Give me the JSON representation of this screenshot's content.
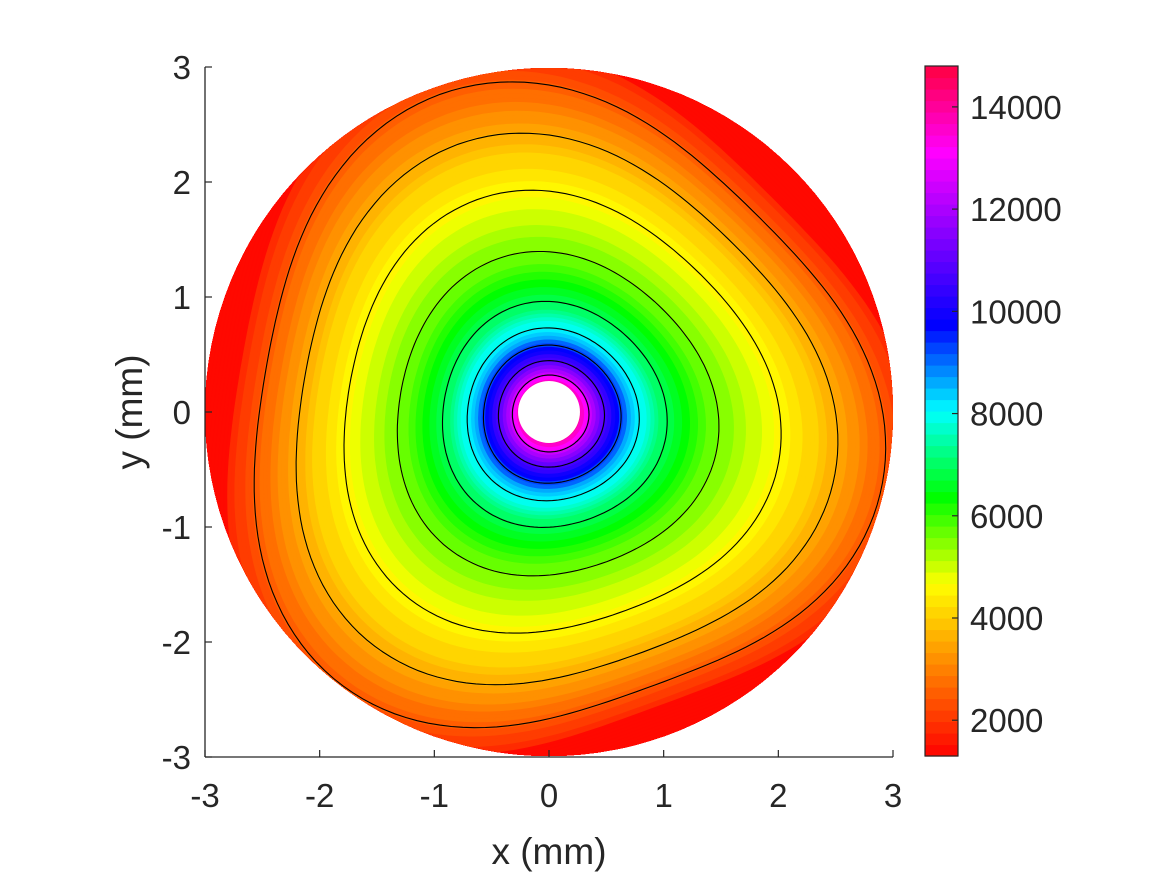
{
  "chart_data": {
    "type": "heatmap",
    "title": "",
    "xlabel": "x (mm)",
    "ylabel": "y (mm)",
    "xlim": [
      -3,
      3
    ],
    "ylim": [
      -3,
      3
    ],
    "xticks": [
      "-3",
      "-2",
      "-1",
      "0",
      "1",
      "2",
      "3"
    ],
    "yticks": [
      "-3",
      "-2",
      "-1",
      "0",
      "1",
      "2",
      "3"
    ],
    "grid": false,
    "domain": {
      "shape": "annulus",
      "outer_radius_mm": 3,
      "inner_radius_mm": 0.27
    },
    "colorbar": {
      "range": [
        1300,
        14800
      ],
      "ticks": [
        "2000",
        "4000",
        "6000",
        "8000",
        "10000",
        "12000",
        "14000"
      ],
      "tick_values": [
        2000,
        4000,
        6000,
        8000,
        10000,
        12000,
        14000
      ],
      "colormap": [
        "#ff0000",
        "#ff8000",
        "#ffff00",
        "#00ff00",
        "#00ffff",
        "#0000ff",
        "#8000ff",
        "#ff00ff",
        "#ff0040"
      ],
      "levels": 60
    },
    "field_model": {
      "description": "contour value vs normalized radius",
      "radius_samples": [
        0.0,
        0.27,
        0.35,
        0.5,
        0.7,
        0.95,
        1.3,
        1.7,
        2.2,
        2.5,
        2.8,
        3.0
      ],
      "value_samples": [
        14800,
        14000,
        12500,
        10500,
        8500,
        7000,
        5800,
        5000,
        4000,
        3200,
        2300,
        1800
      ]
    },
    "contour_levels": [
      2500,
      3600,
      4600,
      5600,
      6900,
      8200,
      9500,
      11000,
      12800
    ],
    "contour_color": "#000000"
  }
}
